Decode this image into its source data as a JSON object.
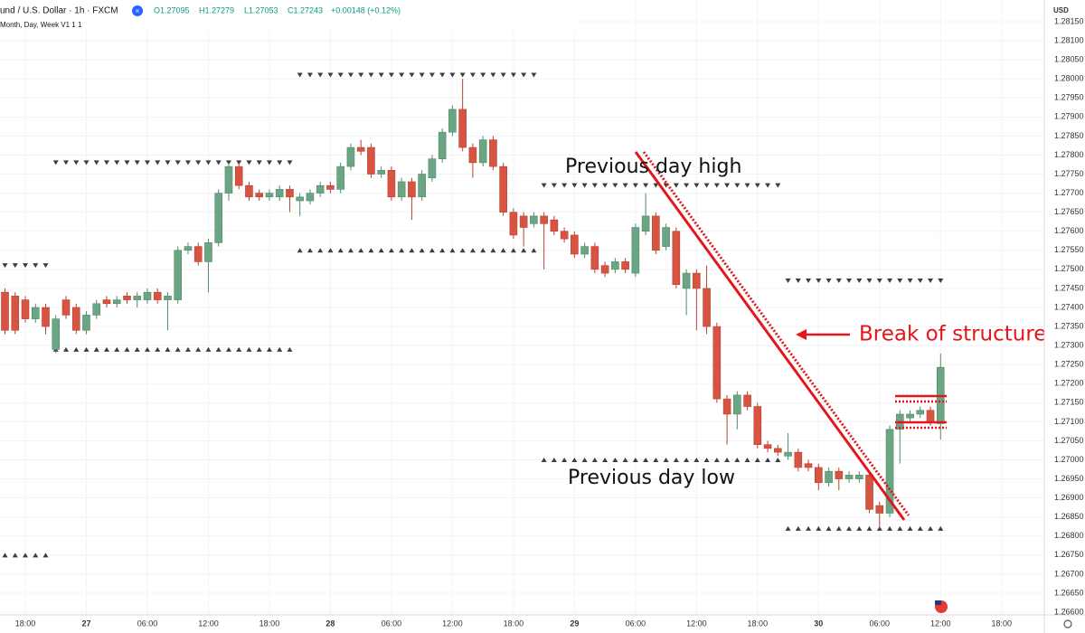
{
  "chart_data": {
    "type": "candlestick",
    "title": "und / U.S. Dollar · 1h · FXCM",
    "subtitle": "Month, Day, Week V1  1  1",
    "last_labels": [
      "O1.27095",
      "H1.27279",
      "L1.27053",
      "C1.27243",
      "+0.00148 (+0.12%)"
    ],
    "currency": "USD",
    "up_color": "#6ba583",
    "down_color": "#d75442",
    "level_color": "#3d3d3d",
    "grid": true,
    "x": [
      -2,
      -1,
      0,
      1,
      2,
      3,
      4,
      5,
      6,
      7,
      8,
      9,
      10,
      11,
      12,
      13,
      14,
      15,
      16,
      17,
      18,
      19,
      20,
      21,
      22,
      23,
      24,
      25,
      26,
      27,
      28,
      29,
      30,
      31,
      32,
      33,
      34,
      35,
      36,
      37,
      38,
      39,
      40,
      41,
      42,
      43,
      44,
      45,
      46,
      47,
      48,
      49,
      50,
      51,
      52,
      53,
      54,
      55,
      56,
      57,
      58,
      59,
      60,
      61,
      62,
      63,
      64,
      65,
      66,
      67,
      68,
      69,
      70,
      71,
      72,
      73,
      74,
      75,
      76,
      77,
      78,
      79,
      80,
      81,
      82,
      83,
      84,
      85,
      86,
      87,
      88,
      89,
      90
    ],
    "open": [
      1.2744,
      1.2743,
      1.2742,
      1.2737,
      1.274,
      1.2729,
      1.2742,
      1.274,
      1.2734,
      1.2738,
      1.2742,
      1.2741,
      1.2743,
      1.2742,
      1.2742,
      1.2744,
      1.2742,
      1.2742,
      1.2755,
      1.2756,
      1.2752,
      1.2757,
      1.277,
      1.2777,
      1.2772,
      1.277,
      1.2769,
      1.2769,
      1.2771,
      1.2768,
      1.2768,
      1.277,
      1.2772,
      1.2771,
      1.2777,
      1.2782,
      1.2782,
      1.2775,
      1.2776,
      1.2769,
      1.2773,
      1.2769,
      1.2774,
      1.2779,
      1.2786,
      1.2792,
      1.2782,
      1.2778,
      1.2784,
      1.2777,
      1.2765,
      1.2764,
      1.2762,
      1.2764,
      1.2763,
      1.276,
      1.2759,
      1.2754,
      1.2756,
      1.2751,
      1.275,
      1.2752,
      1.2749,
      1.276,
      1.2764,
      1.2756,
      1.276,
      1.2745,
      1.2749,
      1.2745,
      1.2735,
      1.2716,
      1.2712,
      1.2717,
      1.2714,
      1.2704,
      1.2703,
      1.2701,
      1.2702,
      1.2699,
      1.2698,
      1.2694,
      1.2697,
      1.2695,
      1.2695,
      1.2696,
      1.2688,
      1.2686,
      1.2708,
      1.2711,
      1.2712,
      1.2713,
      1.27095
    ],
    "high": [
      1.2745,
      1.2744,
      1.2743,
      1.2741,
      1.2741,
      1.2738,
      1.2743,
      1.2741,
      1.2739,
      1.2742,
      1.2743,
      1.2743,
      1.2744,
      1.2744,
      1.2745,
      1.2745,
      1.2744,
      1.2756,
      1.2757,
      1.2757,
      1.2758,
      1.2771,
      1.2778,
      1.2778,
      1.2773,
      1.2771,
      1.2771,
      1.2772,
      1.2772,
      1.277,
      1.2771,
      1.2773,
      1.2773,
      1.2778,
      1.2783,
      1.2784,
      1.2783,
      1.2777,
      1.2777,
      1.2774,
      1.2774,
      1.2776,
      1.278,
      1.2787,
      1.2793,
      1.28,
      1.2783,
      1.2785,
      1.2785,
      1.2778,
      1.2766,
      1.2765,
      1.2765,
      1.2765,
      1.2764,
      1.2761,
      1.276,
      1.2757,
      1.2757,
      1.2752,
      1.2753,
      1.2753,
      1.2762,
      1.277,
      1.2765,
      1.2762,
      1.2761,
      1.275,
      1.275,
      1.2751,
      1.2736,
      1.2717,
      1.2718,
      1.2718,
      1.2715,
      1.2705,
      1.2704,
      1.2707,
      1.2703,
      1.27,
      1.2699,
      1.2698,
      1.2698,
      1.2697,
      1.2697,
      1.2697,
      1.2689,
      1.2709,
      1.2713,
      1.2713,
      1.2714,
      1.2714,
      1.27279
    ],
    "low": [
      1.2733,
      1.2733,
      1.2736,
      1.2736,
      1.2733,
      1.2728,
      1.2737,
      1.2733,
      1.2733,
      1.2737,
      1.274,
      1.274,
      1.2741,
      1.274,
      1.2741,
      1.2741,
      1.2734,
      1.2741,
      1.2754,
      1.2751,
      1.2744,
      1.2756,
      1.2768,
      1.2771,
      1.2768,
      1.2768,
      1.2768,
      1.2768,
      1.2765,
      1.2764,
      1.2767,
      1.2769,
      1.277,
      1.277,
      1.2776,
      1.278,
      1.2774,
      1.2774,
      1.2768,
      1.2768,
      1.2763,
      1.2768,
      1.2773,
      1.2778,
      1.2785,
      1.2781,
      1.2774,
      1.2777,
      1.2776,
      1.2764,
      1.2758,
      1.2756,
      1.2761,
      1.275,
      1.2759,
      1.2757,
      1.2753,
      1.2753,
      1.2749,
      1.2748,
      1.2749,
      1.2749,
      1.2748,
      1.2759,
      1.2754,
      1.2755,
      1.2745,
      1.2738,
      1.2734,
      1.2733,
      1.2715,
      1.2704,
      1.2708,
      1.2713,
      1.2703,
      1.2702,
      1.2701,
      1.27,
      1.2697,
      1.2697,
      1.2692,
      1.2693,
      1.2692,
      1.2694,
      1.2694,
      1.2686,
      1.2682,
      1.2685,
      1.2699,
      1.271,
      1.2711,
      1.2709,
      1.27053
    ],
    "close": [
      1.2734,
      1.2734,
      1.2737,
      1.274,
      1.2735,
      1.2737,
      1.2738,
      1.2734,
      1.2738,
      1.2741,
      1.2741,
      1.2742,
      1.2742,
      1.2743,
      1.2744,
      1.2742,
      1.2743,
      1.2755,
      1.2756,
      1.2752,
      1.2757,
      1.277,
      1.2777,
      1.2772,
      1.2769,
      1.2769,
      1.277,
      1.2771,
      1.2769,
      1.2769,
      1.277,
      1.2772,
      1.2771,
      1.2777,
      1.2782,
      1.2781,
      1.2775,
      1.2776,
      1.2769,
      1.2773,
      1.2769,
      1.2775,
      1.2779,
      1.2786,
      1.2792,
      1.2782,
      1.2778,
      1.2784,
      1.2777,
      1.2765,
      1.2759,
      1.2761,
      1.2764,
      1.2762,
      1.276,
      1.2758,
      1.2754,
      1.2756,
      1.275,
      1.2749,
      1.2752,
      1.275,
      1.2761,
      1.2764,
      1.2755,
      1.2761,
      1.2746,
      1.2749,
      1.2745,
      1.2735,
      1.2716,
      1.2712,
      1.2717,
      1.2714,
      1.2704,
      1.2703,
      1.2702,
      1.2702,
      1.2698,
      1.2698,
      1.2694,
      1.2697,
      1.2695,
      1.2696,
      1.2696,
      1.2687,
      1.2686,
      1.2708,
      1.2712,
      1.2712,
      1.2713,
      1.271,
      1.27243
    ],
    "day_highs": [
      {
        "x": [
          -2,
          2
        ],
        "value": 1.2751
      },
      {
        "x": [
          3,
          26
        ],
        "value": 1.2778
      },
      {
        "x": [
          27,
          50
        ],
        "value": 1.2801
      },
      {
        "x": [
          51,
          74
        ],
        "value": 1.2772
      },
      {
        "x": [
          75,
          90
        ],
        "value": 1.2747
      }
    ],
    "day_lows": [
      {
        "x": [
          -2,
          2
        ],
        "value": 1.2675
      },
      {
        "x": [
          3,
          26
        ],
        "value": 1.2729
      },
      {
        "x": [
          27,
          50
        ],
        "value": 1.2755
      },
      {
        "x": [
          51,
          74
        ],
        "value": 1.27
      },
      {
        "x": [
          75,
          90
        ],
        "value": 1.2682
      }
    ],
    "annotations": [
      "Previous day high",
      "Previous day low",
      "Break of structure"
    ],
    "xlim": [
      -2.49,
      100.2
    ],
    "xticks": [
      {
        "value": 0,
        "label": "18:00"
      },
      {
        "value": 6,
        "label": "27"
      },
      {
        "value": 12,
        "label": "06:00"
      },
      {
        "value": 18,
        "label": "12:00"
      },
      {
        "value": 24,
        "label": "18:00"
      },
      {
        "value": 30,
        "label": "28"
      },
      {
        "value": 36,
        "label": "06:00"
      },
      {
        "value": 42,
        "label": "12:00"
      },
      {
        "value": 48,
        "label": "18:00"
      },
      {
        "value": 54,
        "label": "29"
      },
      {
        "value": 60,
        "label": "06:00"
      },
      {
        "value": 66,
        "label": "12:00"
      },
      {
        "value": 72,
        "label": "18:00"
      },
      {
        "value": 78,
        "label": "30"
      },
      {
        "value": 84,
        "label": "06:00"
      },
      {
        "value": 90,
        "label": "12:00"
      },
      {
        "value": 96,
        "label": "18:00"
      }
    ],
    "ylim": [
      1.26593,
      1.28207
    ],
    "yticks": [
      {
        "value": 1.266,
        "label": "1.26600"
      },
      {
        "value": 1.2665,
        "label": "1.26650"
      },
      {
        "value": 1.267,
        "label": "1.26700"
      },
      {
        "value": 1.2675,
        "label": "1.26750"
      },
      {
        "value": 1.268,
        "label": "1.26800"
      },
      {
        "value": 1.2685,
        "label": "1.26850"
      },
      {
        "value": 1.269,
        "label": "1.26900"
      },
      {
        "value": 1.2695,
        "label": "1.26950"
      },
      {
        "value": 1.27,
        "label": "1.27000"
      },
      {
        "value": 1.2705,
        "label": "1.27050"
      },
      {
        "value": 1.271,
        "label": "1.27100"
      },
      {
        "value": 1.2715,
        "label": "1.27150"
      },
      {
        "value": 1.272,
        "label": "1.27200"
      },
      {
        "value": 1.2725,
        "label": "1.27250"
      },
      {
        "value": 1.273,
        "label": "1.27300"
      },
      {
        "value": 1.2735,
        "label": "1.27350"
      },
      {
        "value": 1.274,
        "label": "1.27400"
      },
      {
        "value": 1.2745,
        "label": "1.27450"
      },
      {
        "value": 1.275,
        "label": "1.27500"
      },
      {
        "value": 1.2755,
        "label": "1.27550"
      },
      {
        "value": 1.276,
        "label": "1.27600"
      },
      {
        "value": 1.2765,
        "label": "1.27650"
      },
      {
        "value": 1.277,
        "label": "1.27700"
      },
      {
        "value": 1.2775,
        "label": "1.27750"
      },
      {
        "value": 1.278,
        "label": "1.27800"
      },
      {
        "value": 1.2785,
        "label": "1.27850"
      },
      {
        "value": 1.279,
        "label": "1.27900"
      },
      {
        "value": 1.2795,
        "label": "1.27950"
      },
      {
        "value": 1.28,
        "label": "1.28000"
      },
      {
        "value": 1.2805,
        "label": "1.28050"
      },
      {
        "value": 1.281,
        "label": "1.28100"
      },
      {
        "value": 1.2815,
        "label": "1.28150"
      }
    ]
  }
}
